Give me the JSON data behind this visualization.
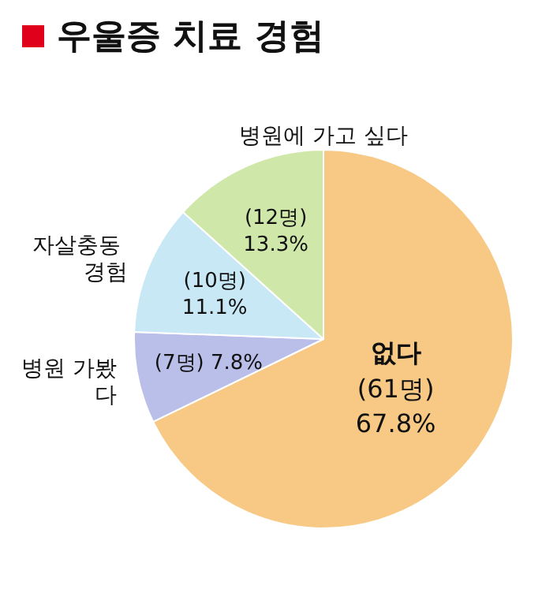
{
  "chart_data": {
    "type": "pie",
    "title": "우울증 치료 경험",
    "categories": [
      "없다",
      "병원 가봤다",
      "자살충동 경험",
      "병원에 가고 싶다"
    ],
    "values": [
      67.8,
      7.8,
      11.1,
      13.3
    ],
    "value_labels": [
      "(61명)\n67.8%",
      "(7명) 7.8%",
      "(10명)\n11.1%",
      "(12명)\n13.3%"
    ],
    "colors": [
      "#f7c985",
      "#b9bfe8",
      "#c8e8f6",
      "#cfe8a9"
    ]
  }
}
